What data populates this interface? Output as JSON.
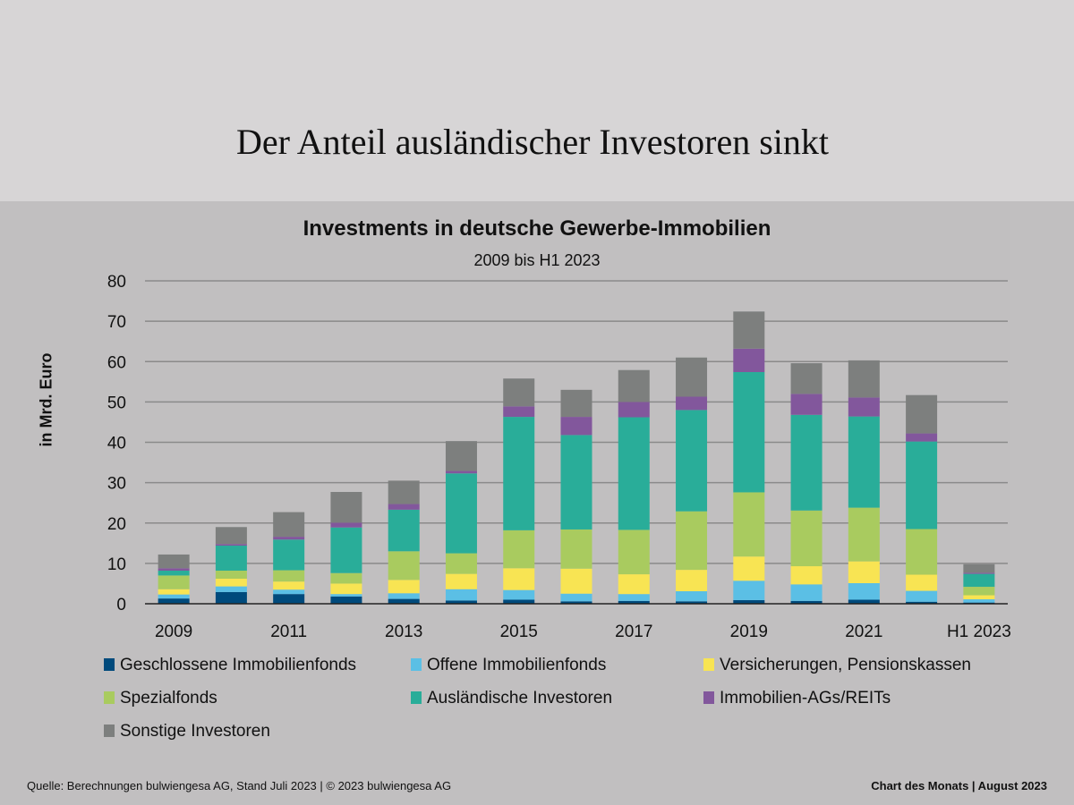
{
  "page": {
    "title": "Der Anteil ausländischer Investoren sinkt",
    "footer_source": "Quelle: Berechnungen bulwiengesa AG, Stand Juli 2023 | © 2023 bulwiengesa AG",
    "footer_right": "Chart des Monats | August 2023"
  },
  "chart_data": {
    "type": "bar",
    "stacked": true,
    "title": "Investments in deutsche Gewerbe-Immobilien",
    "subtitle": "2009 bis H1 2023",
    "xlabel": "",
    "ylabel": "in Mrd. Euro",
    "ylim": [
      0,
      80
    ],
    "yticks": [
      0,
      10,
      20,
      30,
      40,
      50,
      60,
      70,
      80
    ],
    "grid": true,
    "legend_position": "bottom",
    "categories": [
      "2009",
      "2010",
      "2011",
      "2012",
      "2013",
      "2014",
      "2015",
      "2016",
      "2017",
      "2018",
      "2019",
      "2020",
      "2021",
      "2022",
      "H1 2023"
    ],
    "xtick_labels": [
      "2009",
      "",
      "2011",
      "",
      "2013",
      "",
      "2015",
      "",
      "2017",
      "",
      "2019",
      "",
      "2021",
      "",
      "H1 2023"
    ],
    "series": [
      {
        "name": "Geschlossene Immobilienfonds",
        "color": "#004a7c",
        "values": [
          1.3,
          2.9,
          2.4,
          1.8,
          1.2,
          0.8,
          1.0,
          0.6,
          0.7,
          0.6,
          0.9,
          0.7,
          1.0,
          0.5,
          0.3
        ]
      },
      {
        "name": "Offene Immobilienfonds",
        "color": "#5bbfe5",
        "values": [
          1.0,
          1.4,
          1.1,
          0.6,
          1.4,
          2.8,
          2.4,
          1.9,
          1.7,
          2.5,
          4.8,
          4.1,
          4.1,
          2.7,
          0.8
        ]
      },
      {
        "name": "Versicherungen, Pensionskassen",
        "color": "#f8e453",
        "values": [
          1.3,
          1.9,
          2.0,
          2.6,
          3.3,
          3.8,
          5.4,
          6.2,
          4.9,
          5.3,
          6.0,
          4.5,
          5.4,
          4.0,
          1.0
        ]
      },
      {
        "name": "Spezialfonds",
        "color": "#a9cb5f",
        "values": [
          3.4,
          2.0,
          2.8,
          2.6,
          7.1,
          5.1,
          9.4,
          9.7,
          11.0,
          14.5,
          15.9,
          13.8,
          13.3,
          11.3,
          2.1
        ]
      },
      {
        "name": "Ausländische  Investoren",
        "color": "#29ad99",
        "values": [
          1.2,
          6.2,
          7.6,
          11.3,
          10.3,
          19.8,
          28.1,
          23.4,
          27.9,
          25.1,
          29.8,
          23.7,
          22.6,
          21.7,
          3.2
        ]
      },
      {
        "name": "Immobilien-AGs/REITs",
        "color": "#82579c",
        "values": [
          0.6,
          0.4,
          0.7,
          1.2,
          1.4,
          0.6,
          2.6,
          4.5,
          3.8,
          3.3,
          5.8,
          5.2,
          4.7,
          2.0,
          0.3
        ]
      },
      {
        "name": "Sonstige Investoren",
        "color": "#7d7f7e",
        "values": [
          3.4,
          4.2,
          6.1,
          7.6,
          5.8,
          7.4,
          6.9,
          6.7,
          7.9,
          9.7,
          9.2,
          7.6,
          9.2,
          9.5,
          2.1
        ]
      }
    ]
  }
}
